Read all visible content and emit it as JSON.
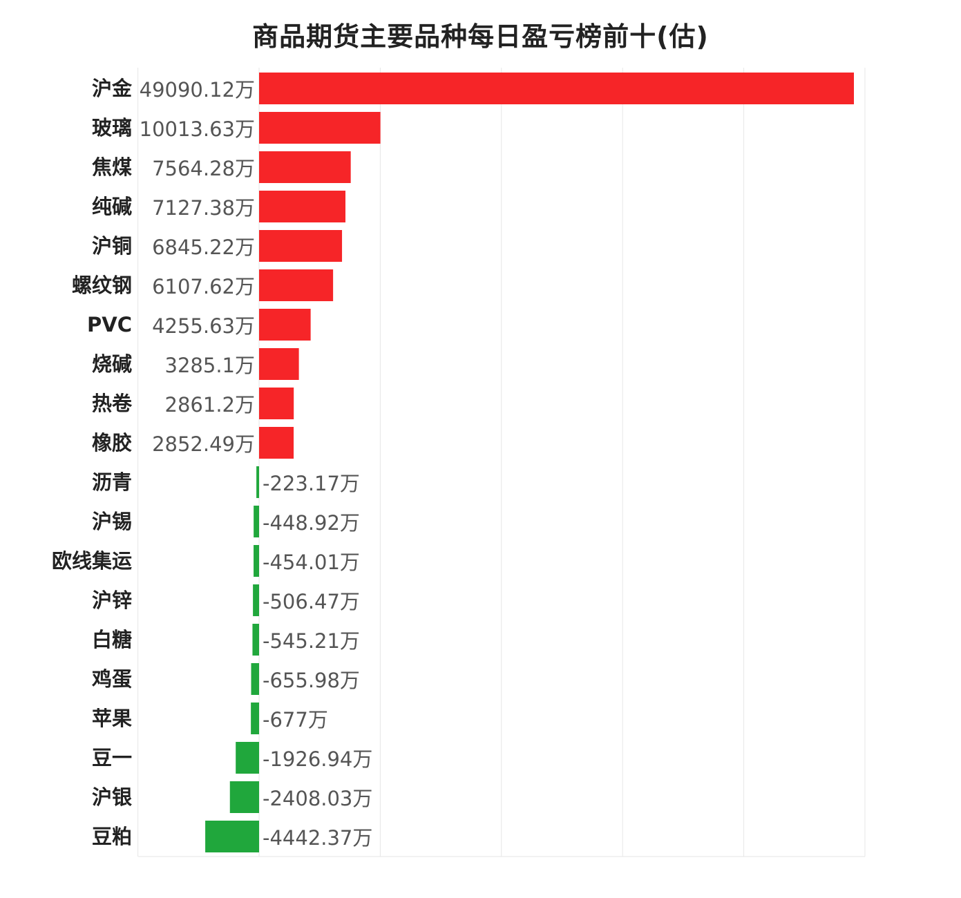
{
  "chart_data": {
    "type": "bar",
    "orientation": "horizontal",
    "title": "商品期货主要品种每日盈亏榜前十(估)",
    "xlabel": "",
    "ylabel": "",
    "unit": "万",
    "grid": true,
    "legend": "none",
    "xlim": [
      -10000,
      50000
    ],
    "categories": [
      "沪金",
      "玻璃",
      "焦煤",
      "纯碱",
      "沪铜",
      "螺纹钢",
      "PVC",
      "烧碱",
      "热卷",
      "橡胶",
      "沥青",
      "沪锡",
      "欧线集运",
      "沪锌",
      "白糖",
      "鸡蛋",
      "苹果",
      "豆一",
      "沪银",
      "豆粕"
    ],
    "values": [
      49090.12,
      10013.63,
      7564.28,
      7127.38,
      6845.22,
      6107.62,
      4255.63,
      3285.1,
      2861.2,
      2852.49,
      -223.17,
      -448.92,
      -454.01,
      -506.47,
      -545.21,
      -655.98,
      -677,
      -1926.94,
      -2408.03,
      -4442.37
    ],
    "value_labels": [
      "49090.12万",
      "10013.63万",
      "7564.28万",
      "7127.38万",
      "6845.22万",
      "6107.62万",
      "4255.63万",
      "3285.1万",
      "2861.2万",
      "2852.49万",
      "-223.17万",
      "-448.92万",
      "-454.01万",
      "-506.47万",
      "-545.21万",
      "-655.98万",
      "-677万",
      "-1926.94万",
      "-2408.03万",
      "-4442.37万"
    ],
    "colors": {
      "positive": "#f62528",
      "negative": "#20a73c",
      "grid": "#e6e6e6",
      "category_text": "#222222",
      "value_text": "#555555"
    }
  }
}
